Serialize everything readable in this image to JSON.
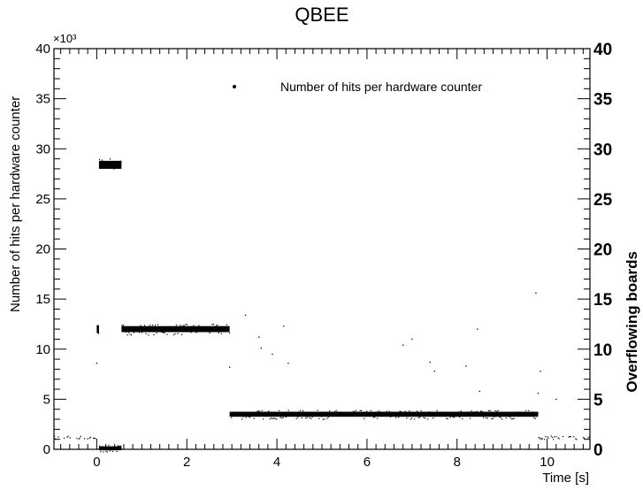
{
  "chart_data": {
    "type": "scatter",
    "title": "QBEE",
    "xlabel": "Time [s]",
    "ylabel": "Number of hits per hardware counter",
    "y2label": "Overflowing boards",
    "y_multiplier_label": "×10³",
    "xlim": [
      -0.95,
      10.95
    ],
    "ylim": [
      0,
      40
    ],
    "y_units": "thousands of hits",
    "y2lim": [
      0,
      40
    ],
    "x_ticks": [
      0,
      2,
      4,
      6,
      8,
      10
    ],
    "x_tick_labels": [
      "0",
      "2",
      "4",
      "6",
      "8",
      "10"
    ],
    "y_ticks": [
      0,
      5,
      10,
      15,
      20,
      25,
      30,
      35,
      40
    ],
    "y_tick_labels": [
      "0",
      "5",
      "10",
      "15",
      "20",
      "25",
      "30",
      "35",
      "40"
    ],
    "y2_ticks": [
      0,
      5,
      10,
      15,
      20,
      25,
      30,
      35,
      40
    ],
    "y2_tick_labels": [
      "0",
      "5",
      "10",
      "15",
      "20",
      "25",
      "30",
      "35",
      "40"
    ],
    "grid": false,
    "legend": {
      "position": "top-right",
      "entries": [
        "Number of hits per hardware counter"
      ]
    },
    "series": [
      {
        "name": "Number of hits per hardware counter",
        "color": "#000000",
        "bands": [
          {
            "x_start": -0.95,
            "x_end": 0.0,
            "y": 1.2,
            "thickness": 0.35,
            "density": 0.5
          },
          {
            "x_start": 0.0,
            "x_end": 0.05,
            "y": 12.0,
            "thickness": 0.8,
            "density": 1.0
          },
          {
            "x_start": 0.05,
            "x_end": 0.55,
            "y": 28.4,
            "thickness": 0.8,
            "density": 1.0
          },
          {
            "x_start": 0.05,
            "x_end": 0.55,
            "y": 0.1,
            "thickness": 0.4,
            "density": 1.0
          },
          {
            "x_start": 0.55,
            "x_end": 2.95,
            "y": 12.0,
            "thickness": 0.6,
            "density": 1.0
          },
          {
            "x_start": 2.95,
            "x_end": 9.8,
            "y": 3.5,
            "thickness": 0.5,
            "density": 1.0
          },
          {
            "x_start": 9.8,
            "x_end": 10.95,
            "y": 1.2,
            "thickness": 0.35,
            "density": 0.5
          }
        ],
        "outliers": [
          {
            "x": 0.0,
            "y": 8.6
          },
          {
            "x": 2.95,
            "y": 8.2
          },
          {
            "x": 3.3,
            "y": 13.4
          },
          {
            "x": 3.6,
            "y": 11.2
          },
          {
            "x": 3.65,
            "y": 10.1
          },
          {
            "x": 3.9,
            "y": 9.5
          },
          {
            "x": 4.15,
            "y": 12.3
          },
          {
            "x": 4.25,
            "y": 8.6
          },
          {
            "x": 6.8,
            "y": 10.4
          },
          {
            "x": 7.0,
            "y": 11.0
          },
          {
            "x": 7.4,
            "y": 8.7
          },
          {
            "x": 7.5,
            "y": 7.8
          },
          {
            "x": 8.2,
            "y": 8.3
          },
          {
            "x": 8.45,
            "y": 12.0
          },
          {
            "x": 8.5,
            "y": 5.8
          },
          {
            "x": 9.75,
            "y": 15.6
          },
          {
            "x": 9.8,
            "y": 5.6
          },
          {
            "x": 9.85,
            "y": 7.8
          },
          {
            "x": 10.2,
            "y": 5.0
          }
        ]
      }
    ]
  }
}
